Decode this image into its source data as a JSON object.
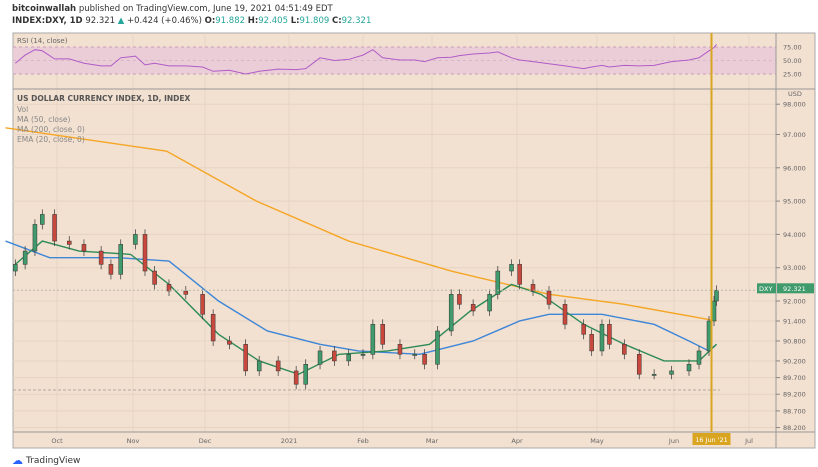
{
  "header": {
    "author": "bitcoinwallah",
    "published": "published on TradingView.com, June 19, 2021 04:51:49 EDT",
    "symbol": "INDEX:DXY, 1D",
    "last": "92.321",
    "change": "+0.424 (+0.46%)",
    "open_label": "O:",
    "open": "91.882",
    "high_label": "H:",
    "high": "92.405",
    "low_label": "L:",
    "low": "91.809",
    "close_label": "C:",
    "close": "92.321"
  },
  "legend": {
    "title": "US DOLLAR CURRENCY INDEX, 1D, INDEX",
    "vol": "Vol",
    "ma50": "MA (50, close)",
    "ma200": "MA (200, close, 0)",
    "ema20": "EMA (20, close, 0)"
  },
  "rsi_panel": {
    "label": "RSI (14, close)",
    "ticks": [
      "75.00",
      "50.00",
      "25.00"
    ]
  },
  "price_axis": {
    "currency": "USD",
    "ticks": [
      "98.000",
      "97.000",
      "96.000",
      "95.000",
      "94.000",
      "93.000",
      "92.000",
      "91.400",
      "90.800",
      "90.200",
      "89.700",
      "89.200",
      "88.700",
      "88.200"
    ]
  },
  "time_axis": {
    "ticks": [
      "Oct",
      "Nov",
      "Dec",
      "2021",
      "Feb",
      "Mar",
      "Apr",
      "May",
      "Jun",
      "Jul"
    ],
    "crosshair_label": "16 Jun '21"
  },
  "price_label": {
    "symbol": "DXY",
    "value": "92.321"
  },
  "footer": {
    "brand": "TradingView"
  },
  "colors": {
    "background": "#f2e0d0",
    "up": "#3f9a6c",
    "down": "#c9483d",
    "ma200": "#f5a623",
    "ma50": "#3d86d8",
    "ema20": "#2e8b57",
    "rsi": "#b05cc8",
    "crosshair": "#d9a520"
  },
  "chart_data": {
    "type": "candlestick",
    "title": "US DOLLAR CURRENCY INDEX, 1D, INDEX",
    "ylim": [
      88.2,
      98.2
    ],
    "xlim": [
      "2020-09-10",
      "2021-07-25"
    ],
    "grid": true,
    "candles_close": [
      [
        "2020-09-14",
        93.1
      ],
      [
        "2020-09-18",
        93.5
      ],
      [
        "2020-09-22",
        94.3
      ],
      [
        "2020-09-25",
        94.6
      ],
      [
        "2020-09-30",
        93.8
      ],
      [
        "2020-10-06",
        93.7
      ],
      [
        "2020-10-12",
        93.5
      ],
      [
        "2020-10-19",
        93.1
      ],
      [
        "2020-10-23",
        92.8
      ],
      [
        "2020-10-27",
        93.7
      ],
      [
        "2020-11-02",
        94.0
      ],
      [
        "2020-11-06",
        92.9
      ],
      [
        "2020-11-10",
        92.5
      ],
      [
        "2020-11-16",
        92.3
      ],
      [
        "2020-11-23",
        92.2
      ],
      [
        "2020-11-30",
        91.6
      ],
      [
        "2020-12-04",
        90.8
      ],
      [
        "2020-12-10",
        90.7
      ],
      [
        "2020-12-16",
        89.9
      ],
      [
        "2020-12-21",
        90.2
      ],
      [
        "2020-12-28",
        89.9
      ],
      [
        "2021-01-04",
        89.5
      ],
      [
        "2021-01-08",
        90.1
      ],
      [
        "2021-01-14",
        90.5
      ],
      [
        "2021-01-20",
        90.2
      ],
      [
        "2021-01-26",
        90.4
      ],
      [
        "2021-02-01",
        90.4
      ],
      [
        "2021-02-05",
        91.3
      ],
      [
        "2021-02-09",
        90.7
      ],
      [
        "2021-02-16",
        90.4
      ],
      [
        "2021-02-22",
        90.4
      ],
      [
        "2021-02-26",
        90.1
      ],
      [
        "2021-03-03",
        91.1
      ],
      [
        "2021-03-08",
        92.2
      ],
      [
        "2021-03-11",
        91.9
      ],
      [
        "2021-03-16",
        91.7
      ],
      [
        "2021-03-22",
        92.2
      ],
      [
        "2021-03-25",
        92.9
      ],
      [
        "2021-03-30",
        93.1
      ],
      [
        "2021-04-02",
        92.5
      ],
      [
        "2021-04-07",
        92.3
      ],
      [
        "2021-04-13",
        91.9
      ],
      [
        "2021-04-19",
        91.3
      ],
      [
        "2021-04-26",
        91.0
      ],
      [
        "2021-04-29",
        90.5
      ],
      [
        "2021-05-03",
        91.3
      ],
      [
        "2021-05-06",
        90.7
      ],
      [
        "2021-05-12",
        90.4
      ],
      [
        "2021-05-18",
        89.8
      ],
      [
        "2021-05-24",
        89.8
      ],
      [
        "2021-05-31",
        89.9
      ],
      [
        "2021-06-07",
        90.1
      ],
      [
        "2021-06-11",
        90.5
      ],
      [
        "2021-06-15",
        91.4
      ],
      [
        "2021-06-17",
        92.0
      ],
      [
        "2021-06-18",
        92.321
      ]
    ],
    "rsi": [
      45,
      60,
      70,
      68,
      53,
      53,
      45,
      40,
      40,
      55,
      58,
      42,
      45,
      40,
      40,
      38,
      30,
      32,
      25,
      30,
      34,
      33,
      35,
      55,
      50,
      52,
      60,
      70,
      55,
      51,
      51,
      48,
      55,
      56,
      59,
      62,
      64,
      66,
      55,
      51,
      48,
      44,
      40,
      35,
      38,
      41,
      38,
      41,
      40,
      41,
      48,
      51,
      55,
      68,
      74,
      80
    ],
    "ma200": [
      [
        "2020-09-10",
        97.2
      ],
      [
        "2020-11-15",
        96.5
      ],
      [
        "2020-12-20",
        95.0
      ],
      [
        "2021-01-26",
        93.8
      ],
      [
        "2021-03-08",
        92.9
      ],
      [
        "2021-04-13",
        92.2
      ],
      [
        "2021-05-12",
        91.9
      ],
      [
        "2021-06-18",
        91.4
      ]
    ],
    "ma50": [
      [
        "2020-09-10",
        93.8
      ],
      [
        "2020-09-28",
        93.3
      ],
      [
        "2020-10-26",
        93.3
      ],
      [
        "2020-11-16",
        93.2
      ],
      [
        "2020-12-06",
        92.0
      ],
      [
        "2020-12-24",
        91.1
      ],
      [
        "2021-01-14",
        90.7
      ],
      [
        "2021-01-30",
        90.5
      ],
      [
        "2021-02-24",
        90.4
      ],
      [
        "2021-03-16",
        90.8
      ],
      [
        "2021-04-02",
        91.4
      ],
      [
        "2021-04-13",
        91.6
      ],
      [
        "2021-05-03",
        91.6
      ],
      [
        "2021-05-24",
        91.3
      ],
      [
        "2021-06-07",
        90.8
      ],
      [
        "2021-06-15",
        90.5
      ],
      [
        "2021-06-18",
        90.7
      ]
    ],
    "ema20": [
      [
        "2020-09-14",
        93.1
      ],
      [
        "2020-09-25",
        93.8
      ],
      [
        "2020-10-10",
        93.5
      ],
      [
        "2020-10-31",
        93.4
      ],
      [
        "2020-11-16",
        92.5
      ],
      [
        "2020-12-06",
        91.0
      ],
      [
        "2020-12-21",
        90.2
      ],
      [
        "2021-01-05",
        89.8
      ],
      [
        "2021-01-22",
        90.4
      ],
      [
        "2021-02-11",
        90.5
      ],
      [
        "2021-02-28",
        90.7
      ],
      [
        "2021-03-15",
        91.7
      ],
      [
        "2021-03-30",
        92.5
      ],
      [
        "2021-04-10",
        92.2
      ],
      [
        "2021-04-26",
        91.3
      ],
      [
        "2021-05-12",
        90.7
      ],
      [
        "2021-05-28",
        90.2
      ],
      [
        "2021-06-11",
        90.2
      ],
      [
        "2021-06-18",
        90.7
      ]
    ],
    "crosshair_date": "2021-06-16",
    "rsi_bands": [
      25,
      75
    ]
  }
}
